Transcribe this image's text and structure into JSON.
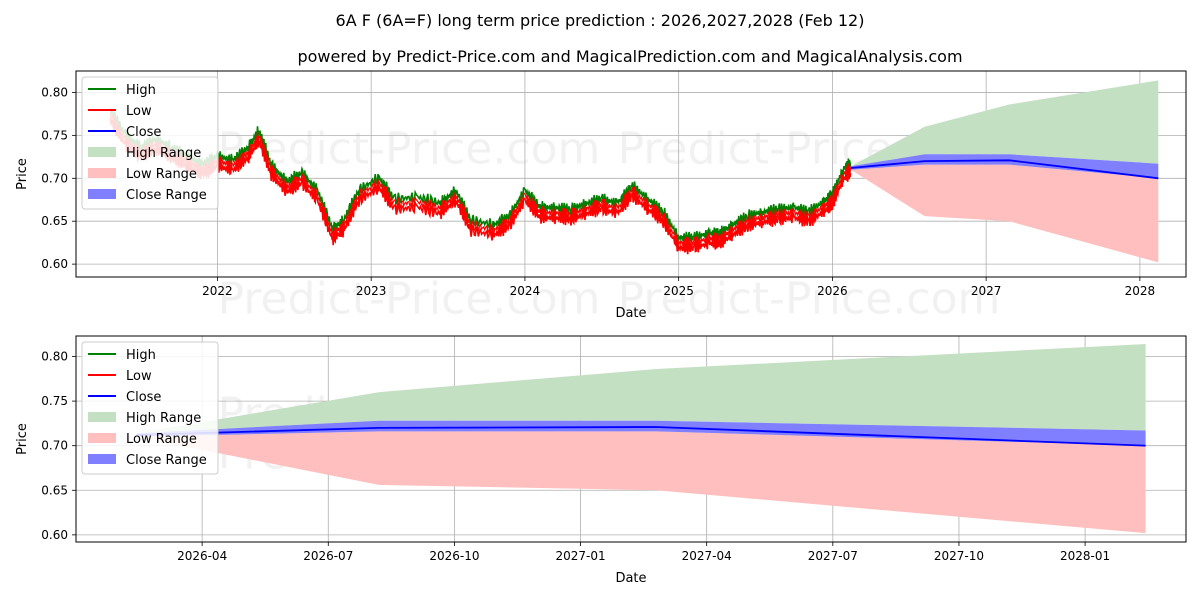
{
  "chart_data": {
    "type": "line",
    "title": "6A F (6A=F) long term price prediction : 2026,2027,2028 (Feb 12)",
    "subtitle": "powered by Predict-Price.com and MagicalPrediction.com and MagicalAnalysis.com",
    "watermark": "Predict-Price.com",
    "colors": {
      "high": "#008000",
      "low": "#ff0000",
      "close": "#0000ff",
      "high_range": "#c3e0c3",
      "low_range": "#ffbfbf",
      "close_range": "#7f7fff"
    },
    "legend": {
      "placement": "top-left",
      "entries": [
        "High",
        "Low",
        "Close",
        "High Range",
        "Low Range",
        "Close Range"
      ]
    },
    "panels": [
      {
        "id": "overview",
        "xlabel": "Date",
        "ylabel": "Price",
        "xlim": [
          2021.08,
          2028.3
        ],
        "ylim": [
          0.585,
          0.825
        ],
        "x_ticks": [
          2022,
          2023,
          2024,
          2025,
          2026,
          2027,
          2028
        ],
        "x_tick_labels": [
          "2022",
          "2023",
          "2024",
          "2025",
          "2026",
          "2027",
          "2028"
        ],
        "y_ticks": [
          0.6,
          0.65,
          0.7,
          0.75,
          0.8
        ],
        "y_tick_labels": [
          "0.60",
          "0.65",
          "0.70",
          "0.75",
          "0.80"
        ],
        "history": {
          "x": [
            2021.3,
            2021.4,
            2021.5,
            2021.6,
            2021.7,
            2021.8,
            2021.9,
            2022.0,
            2022.1,
            2022.2,
            2022.27,
            2022.35,
            2022.45,
            2022.55,
            2022.65,
            2022.75,
            2022.82,
            2022.92,
            2023.05,
            2023.15,
            2023.3,
            2023.45,
            2023.55,
            2023.65,
            2023.8,
            2023.9,
            2024.0,
            2024.1,
            2024.2,
            2024.3,
            2024.4,
            2024.5,
            2024.6,
            2024.7,
            2024.8,
            2024.9,
            2025.0,
            2025.1,
            2025.2,
            2025.27,
            2025.35,
            2025.45,
            2025.55,
            2025.65,
            2025.75,
            2025.85,
            2025.95,
            2026.0,
            2026.07,
            2026.12
          ],
          "close": [
            0.775,
            0.745,
            0.73,
            0.74,
            0.73,
            0.72,
            0.71,
            0.72,
            0.715,
            0.73,
            0.75,
            0.71,
            0.69,
            0.7,
            0.68,
            0.635,
            0.645,
            0.68,
            0.695,
            0.67,
            0.672,
            0.665,
            0.68,
            0.645,
            0.64,
            0.65,
            0.68,
            0.66,
            0.66,
            0.658,
            0.665,
            0.67,
            0.665,
            0.685,
            0.67,
            0.655,
            0.625,
            0.625,
            0.63,
            0.63,
            0.64,
            0.65,
            0.655,
            0.658,
            0.66,
            0.655,
            0.668,
            0.675,
            0.705,
            0.712
          ],
          "low_offset": 0.006,
          "high_offset": 0.006
        },
        "forecast": {
          "x": [
            2026.12,
            2026.6,
            2027.15,
            2028.12
          ],
          "close": [
            0.712,
            0.72,
            0.721,
            0.7
          ],
          "close_range_upper": [
            0.714,
            0.728,
            0.728,
            0.717
          ],
          "close_range_lower": [
            0.71,
            0.716,
            0.716,
            0.7
          ],
          "high_range_upper": [
            0.714,
            0.76,
            0.786,
            0.814
          ],
          "low_range_lower": [
            0.71,
            0.656,
            0.65,
            0.602
          ]
        }
      },
      {
        "id": "zoom",
        "xlabel": "Date",
        "ylabel": "Price",
        "xlim": [
          2026.0,
          2028.2
        ],
        "ylim": [
          0.592,
          0.823
        ],
        "x_ticks": [
          2026.25,
          2026.5,
          2026.75,
          2027.0,
          2027.25,
          2027.5,
          2027.75,
          2028.0
        ],
        "x_tick_labels": [
          "2026-04",
          "2026-07",
          "2026-10",
          "2027-01",
          "2027-04",
          "2027-07",
          "2027-10",
          "2028-01"
        ],
        "y_ticks": [
          0.6,
          0.65,
          0.7,
          0.75,
          0.8
        ],
        "y_tick_labels": [
          "0.60",
          "0.65",
          "0.70",
          "0.75",
          "0.80"
        ],
        "forecast": {
          "x": [
            2026.12,
            2026.6,
            2027.15,
            2028.12
          ],
          "close": [
            0.712,
            0.72,
            0.721,
            0.7
          ],
          "close_range_upper": [
            0.714,
            0.728,
            0.728,
            0.717
          ],
          "close_range_lower": [
            0.71,
            0.716,
            0.716,
            0.7
          ],
          "high_range_upper": [
            0.714,
            0.76,
            0.786,
            0.814
          ],
          "low_range_lower": [
            0.71,
            0.656,
            0.65,
            0.602
          ]
        }
      }
    ]
  }
}
